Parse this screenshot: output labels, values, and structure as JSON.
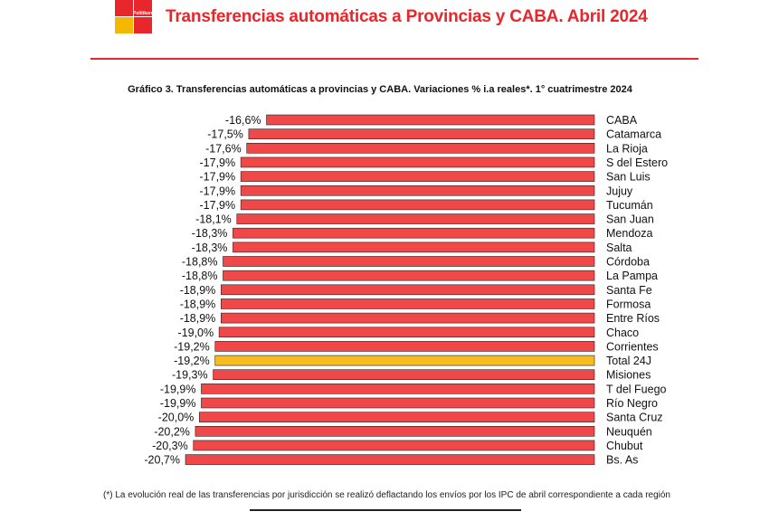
{
  "header": {
    "brand": "Politikon",
    "title": "Transferencias automáticas a Provincias y CABA. Abril 2024"
  },
  "chart_data": {
    "type": "bar",
    "orientation": "horizontal",
    "title": "Gráfico 3. Transferencias automáticas a provincias y CABA. Variaciones % i.a reales*. 1° cuatrimestre 2024",
    "categories": [
      "CABA",
      "Catamarca",
      "La Rioja",
      "S del Estero",
      "San Luis",
      "Jujuy",
      "Tucumán",
      "San Juan",
      "Mendoza",
      "Salta",
      "Córdoba",
      "La Pampa",
      "Santa Fe",
      "Formosa",
      "Entre Ríos",
      "Chaco",
      "Corrientes",
      "Total 24J",
      "Misiones",
      "T del Fuego",
      "Río Negro",
      "Santa Cruz",
      "Neuquén",
      "Chubut",
      "Bs. As"
    ],
    "values": [
      -16.6,
      -17.5,
      -17.6,
      -17.9,
      -17.9,
      -17.9,
      -17.9,
      -18.1,
      -18.3,
      -18.3,
      -18.8,
      -18.8,
      -18.9,
      -18.9,
      -18.9,
      -19.0,
      -19.2,
      -19.2,
      -19.3,
      -19.9,
      -19.9,
      -20.0,
      -20.2,
      -20.3,
      -20.7
    ],
    "value_labels": [
      "-16,6%",
      "-17,5%",
      "-17,6%",
      "-17,9%",
      "-17,9%",
      "-17,9%",
      "-17,9%",
      "-18,1%",
      "-18,3%",
      "-18,3%",
      "-18,8%",
      "-18,8%",
      "-18,9%",
      "-18,9%",
      "-18,9%",
      "-19,0%",
      "-19,2%",
      "-19,2%",
      "-19,3%",
      "-19,9%",
      "-19,9%",
      "-20,0%",
      "-20,2%",
      "-20,3%",
      "-20,7%"
    ],
    "highlight": "Total 24J",
    "colors": {
      "bar": "#f04848",
      "highlight": "#f5bd1f",
      "edge": "#222222"
    },
    "xlim": [
      -20.7,
      0
    ]
  },
  "footnote": "(*) La evolución real de las transferencias por jurisdicción se realizó deflactando los envíos por los IPC de abril correspondiente a cada región"
}
